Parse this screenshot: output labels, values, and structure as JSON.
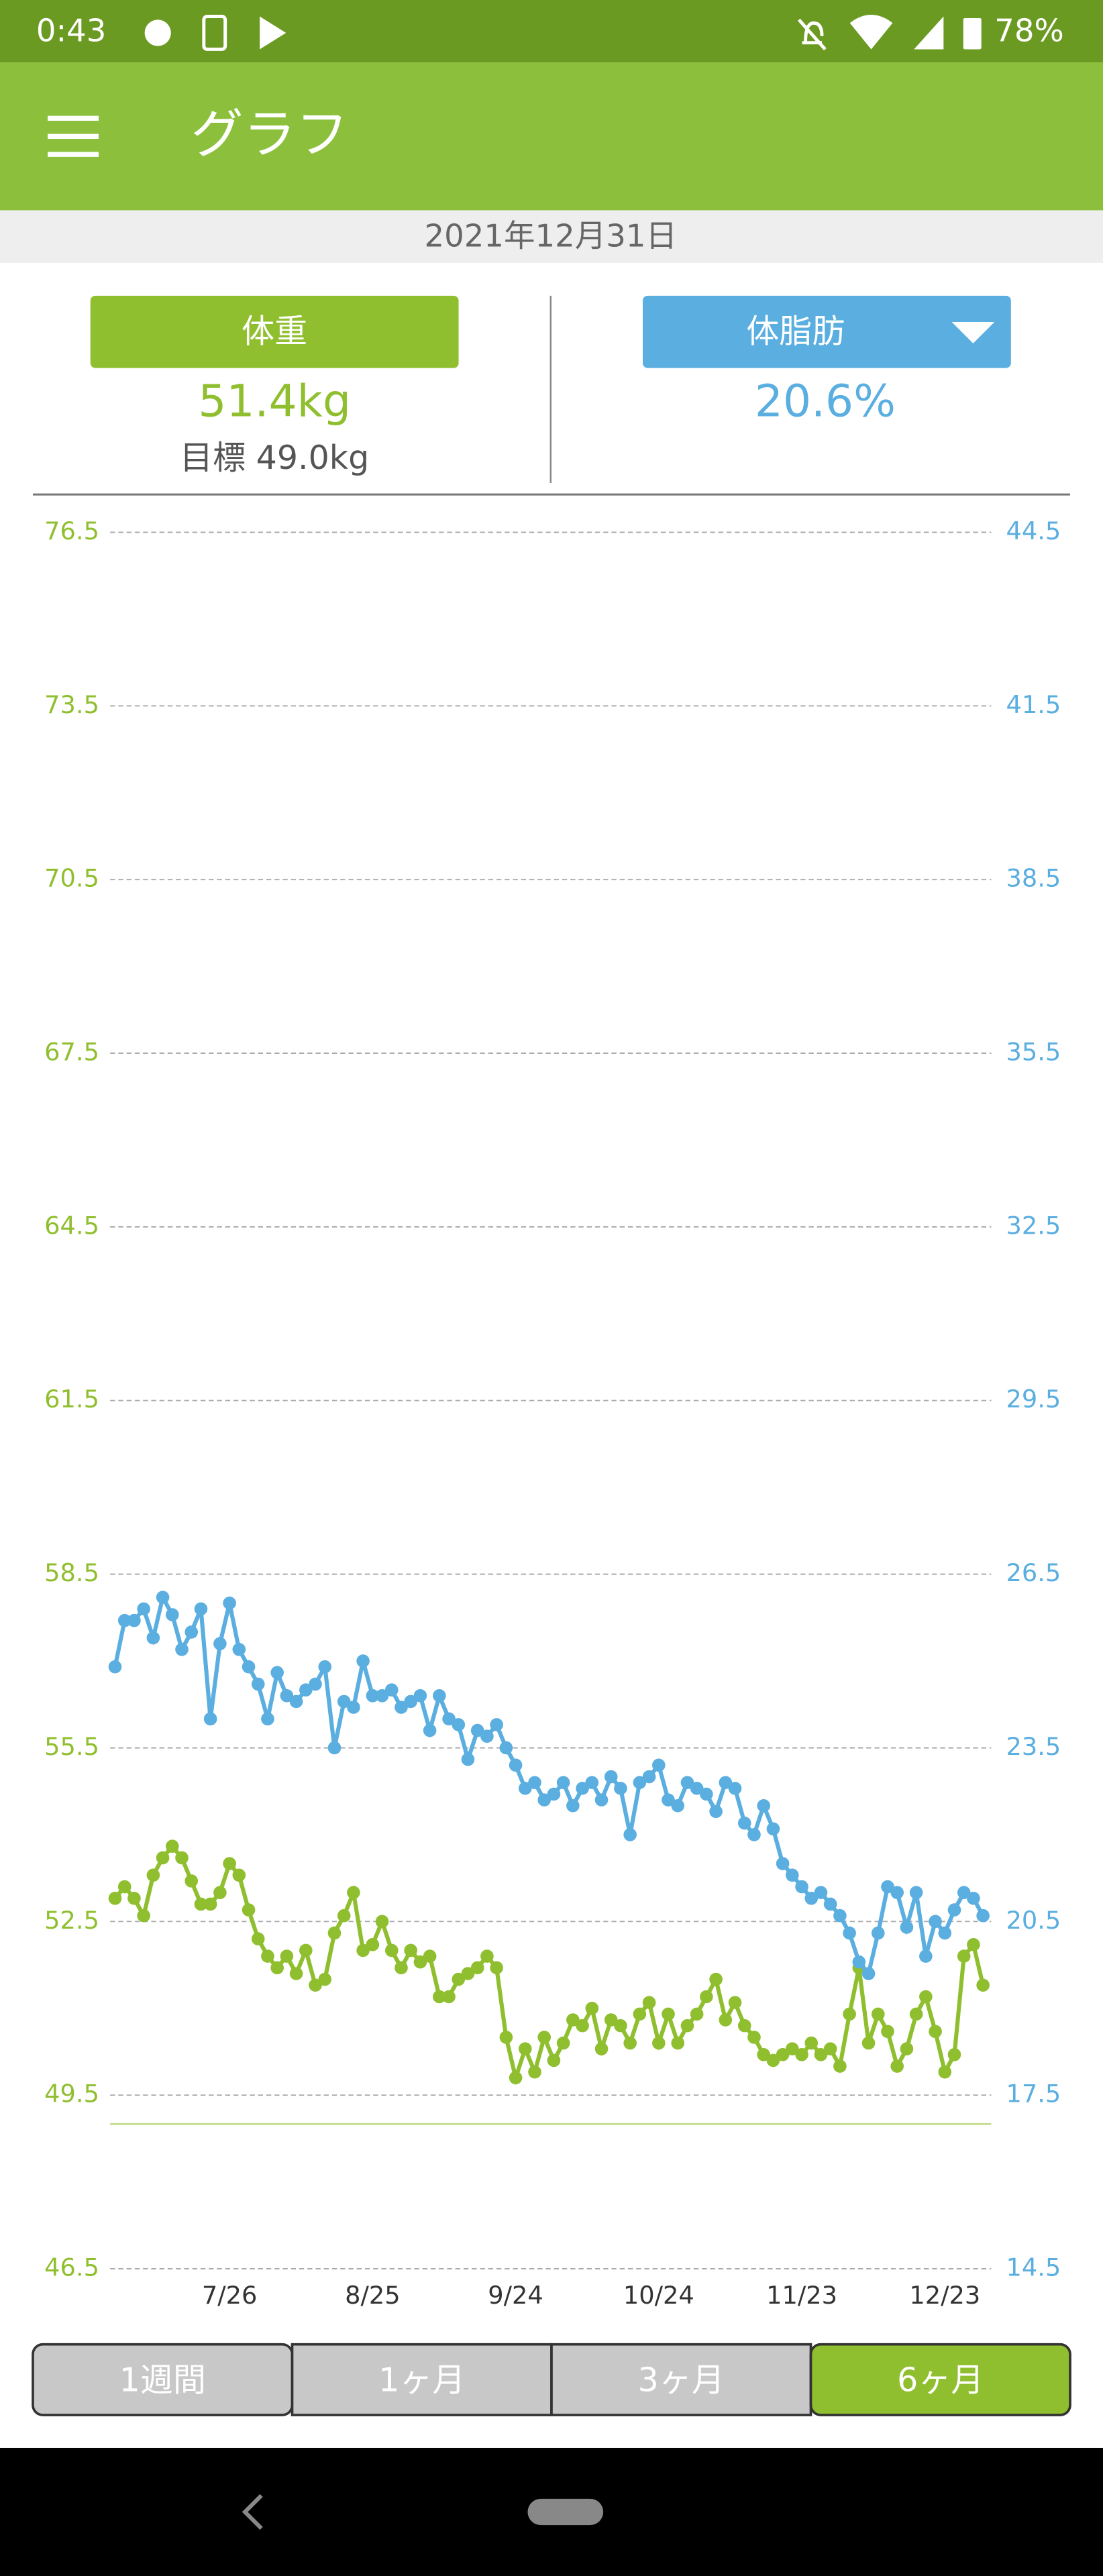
{
  "status_bar": {
    "time": "0:43",
    "battery": "78%"
  },
  "app_bar": {
    "title": "グラフ"
  },
  "date": "2021年12月31日",
  "summary": {
    "weight_button": "体重",
    "weight_value": "51.4kg",
    "weight_target": "目標 49.0kg",
    "fat_button": "体脂肪",
    "fat_value": "20.6%"
  },
  "chart_data": {
    "type": "line",
    "x": [
      "7/2",
      "7/4",
      "7/6",
      "7/8",
      "7/10",
      "7/12",
      "7/14",
      "7/16",
      "7/18",
      "7/20",
      "7/22",
      "7/24",
      "7/26",
      "7/28",
      "7/30",
      "8/1",
      "8/3",
      "8/5",
      "8/7",
      "8/9",
      "8/11",
      "8/13",
      "8/15",
      "8/17",
      "8/19",
      "8/21",
      "8/23",
      "8/25",
      "8/27",
      "8/29",
      "8/31",
      "9/2",
      "9/4",
      "9/6",
      "9/8",
      "9/10",
      "9/12",
      "9/14",
      "9/16",
      "9/18",
      "9/20",
      "9/22",
      "9/24",
      "9/26",
      "9/28",
      "9/30",
      "10/2",
      "10/4",
      "10/6",
      "10/8",
      "10/10",
      "10/12",
      "10/14",
      "10/16",
      "10/18",
      "10/20",
      "10/22",
      "10/24",
      "10/26",
      "10/28",
      "10/30",
      "11/1",
      "11/3",
      "11/5",
      "11/7",
      "11/9",
      "11/11",
      "11/13",
      "11/15",
      "11/17",
      "11/19",
      "11/21",
      "11/23",
      "11/25",
      "11/27",
      "11/29",
      "12/1",
      "12/3",
      "12/5",
      "12/7",
      "12/9",
      "12/11",
      "12/13",
      "12/15",
      "12/17",
      "12/19",
      "12/21",
      "12/23",
      "12/25",
      "12/27",
      "12/29",
      "12/31"
    ],
    "xticks": [
      "7/26",
      "8/25",
      "9/24",
      "10/24",
      "11/23",
      "12/23"
    ],
    "series": [
      {
        "name": "体重",
        "color": "#8fbf2e",
        "axis": "y",
        "values": [
          52.9,
          53.1,
          52.9,
          52.6,
          53.3,
          53.6,
          53.8,
          53.6,
          53.2,
          52.8,
          52.8,
          53.0,
          53.5,
          53.3,
          52.7,
          52.2,
          51.9,
          51.7,
          51.9,
          51.6,
          52.0,
          51.4,
          51.5,
          52.3,
          52.6,
          53.0,
          52.0,
          52.1,
          52.5,
          52.0,
          51.7,
          52.0,
          51.8,
          51.9,
          51.2,
          51.2,
          51.5,
          51.6,
          51.7,
          51.9,
          51.7,
          50.5,
          49.8,
          50.3,
          49.9,
          50.5,
          50.1,
          50.4,
          50.8,
          50.7,
          51.0,
          50.3,
          50.8,
          50.7,
          50.4,
          50.9,
          51.1,
          50.4,
          50.9,
          50.4,
          50.7,
          50.9,
          51.2,
          51.5,
          50.8,
          51.1,
          50.7,
          50.5,
          50.2,
          50.1,
          50.2,
          50.3,
          50.2,
          50.4,
          50.2,
          50.3,
          50.0,
          50.9,
          51.7,
          50.4,
          50.9,
          50.6,
          50.0,
          50.3,
          50.9,
          51.2,
          50.6,
          49.9,
          50.2,
          51.9,
          52.1,
          51.4
        ]
      },
      {
        "name": "体脂肪",
        "color": "#5aaee0",
        "axis": "y2",
        "values": [
          24.9,
          25.7,
          25.7,
          25.9,
          25.4,
          26.1,
          25.8,
          25.2,
          25.5,
          25.9,
          24.0,
          25.3,
          26.0,
          25.2,
          24.9,
          24.6,
          24.0,
          24.8,
          24.4,
          24.3,
          24.5,
          24.6,
          24.9,
          23.5,
          24.3,
          24.2,
          25.0,
          24.4,
          24.4,
          24.5,
          24.2,
          24.3,
          24.4,
          23.8,
          24.4,
          24.0,
          23.9,
          23.3,
          23.8,
          23.7,
          23.9,
          23.5,
          23.2,
          22.8,
          22.9,
          22.6,
          22.7,
          22.9,
          22.5,
          22.8,
          22.9,
          22.6,
          23.0,
          22.8,
          22.0,
          22.9,
          23.0,
          23.2,
          22.6,
          22.5,
          22.9,
          22.8,
          22.7,
          22.4,
          22.9,
          22.8,
          22.2,
          22.0,
          22.5,
          22.1,
          21.5,
          21.3,
          21.1,
          20.9,
          21.0,
          20.8,
          20.6,
          20.3,
          19.8,
          19.6,
          20.3,
          21.1,
          21.0,
          20.4,
          21.0,
          19.9,
          20.5,
          20.3,
          20.7,
          21.0,
          20.9,
          20.6
        ]
      }
    ],
    "ylim": [
      46.5,
      76.5
    ],
    "yticks": [
      46.5,
      49.5,
      52.5,
      55.5,
      58.5,
      61.5,
      64.5,
      67.5,
      70.5,
      73.5,
      76.5
    ],
    "y2lim": [
      14.5,
      44.5
    ],
    "y2ticks": [
      14.5,
      17.5,
      20.5,
      23.5,
      26.5,
      29.5,
      32.5,
      35.5,
      38.5,
      41.5,
      44.5
    ],
    "target": 49.0,
    "grid": true
  },
  "tabs": [
    {
      "label": "1週間",
      "active": false
    },
    {
      "label": "1ヶ月",
      "active": false
    },
    {
      "label": "3ヶ月",
      "active": false
    },
    {
      "label": "6ヶ月",
      "active": true
    }
  ]
}
